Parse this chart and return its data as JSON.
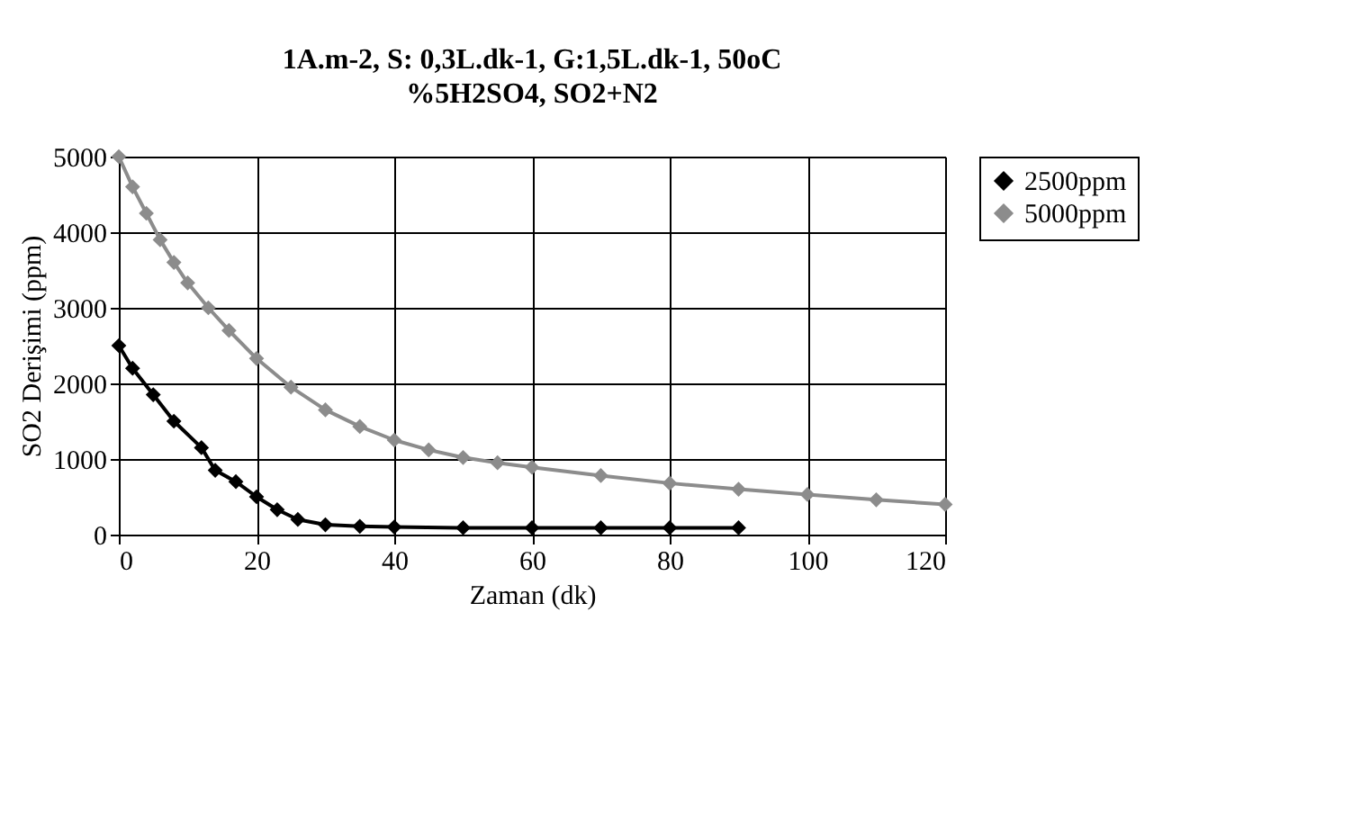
{
  "chart_data": {
    "type": "line",
    "title": "1A.m-2, S: 0,3L.dk-1, G:1,5L.dk-1, 50oC",
    "subtitle": "%5H2SO4, SO2+N2",
    "xlabel": "Zaman (dk)",
    "ylabel": "SO2 Derişimi (ppm)",
    "xlim": [
      0,
      120
    ],
    "xticks": [
      0,
      20,
      40,
      60,
      80,
      100,
      120
    ],
    "ylim": [
      0,
      5000
    ],
    "yticks": [
      0,
      1000,
      2000,
      3000,
      4000,
      5000
    ],
    "grid": true,
    "legend": "right",
    "marker": "diamond",
    "line_style": "solid",
    "series": [
      {
        "name": "2500ppm",
        "color": "#000000",
        "x": [
          0,
          2,
          5,
          8,
          12,
          14,
          17,
          20,
          23,
          26,
          30,
          35,
          40,
          50,
          60,
          70,
          80,
          90
        ],
        "values": [
          2500,
          2200,
          1850,
          1500,
          1150,
          850,
          700,
          500,
          330,
          200,
          130,
          110,
          100,
          90,
          90,
          90,
          90,
          90
        ]
      },
      {
        "name": "5000ppm",
        "color": "#8c8c8c",
        "x": [
          0,
          2,
          4,
          6,
          8,
          10,
          13,
          16,
          20,
          25,
          30,
          35,
          40,
          45,
          50,
          55,
          60,
          70,
          80,
          90,
          100,
          110,
          120
        ],
        "values": [
          5000,
          4600,
          4250,
          3900,
          3600,
          3330,
          3000,
          2700,
          2330,
          1950,
          1650,
          1430,
          1250,
          1120,
          1020,
          950,
          890,
          780,
          680,
          600,
          530,
          460,
          400
        ]
      }
    ]
  }
}
